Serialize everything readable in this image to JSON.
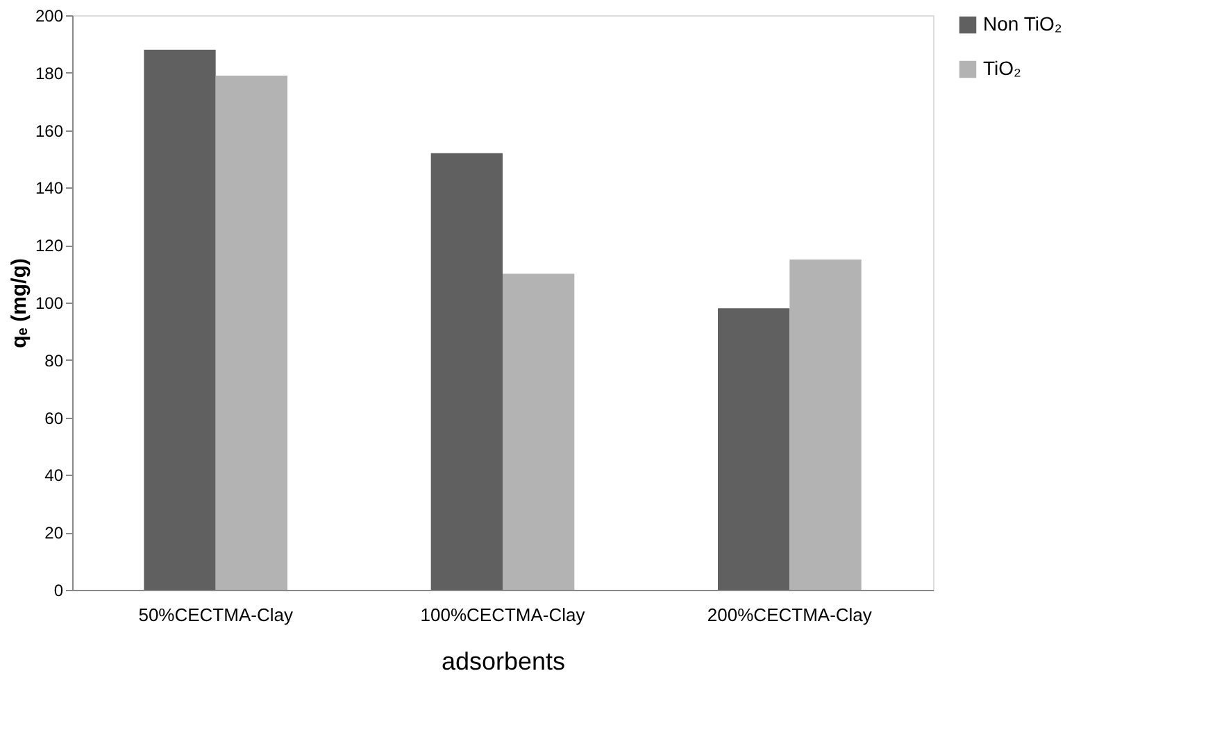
{
  "chart_data": {
    "type": "bar",
    "xlabel": "adsorbents",
    "ylabel": "qₑ (mg/g)",
    "categories": [
      "50%CECTMA-Clay",
      "100%CECTMA-Clay",
      "200%CECTMA-Clay"
    ],
    "series": [
      {
        "name": "Non TiO₂",
        "color": "#606060",
        "values": [
          188,
          152,
          98
        ]
      },
      {
        "name": "TiO₂",
        "color": "#b3b3b3",
        "values": [
          179,
          110,
          115
        ]
      }
    ],
    "ylim": [
      0,
      200
    ],
    "yticks": [
      0,
      20,
      40,
      60,
      80,
      100,
      120,
      140,
      160,
      180,
      200
    ],
    "grid": false,
    "legend": "right"
  }
}
